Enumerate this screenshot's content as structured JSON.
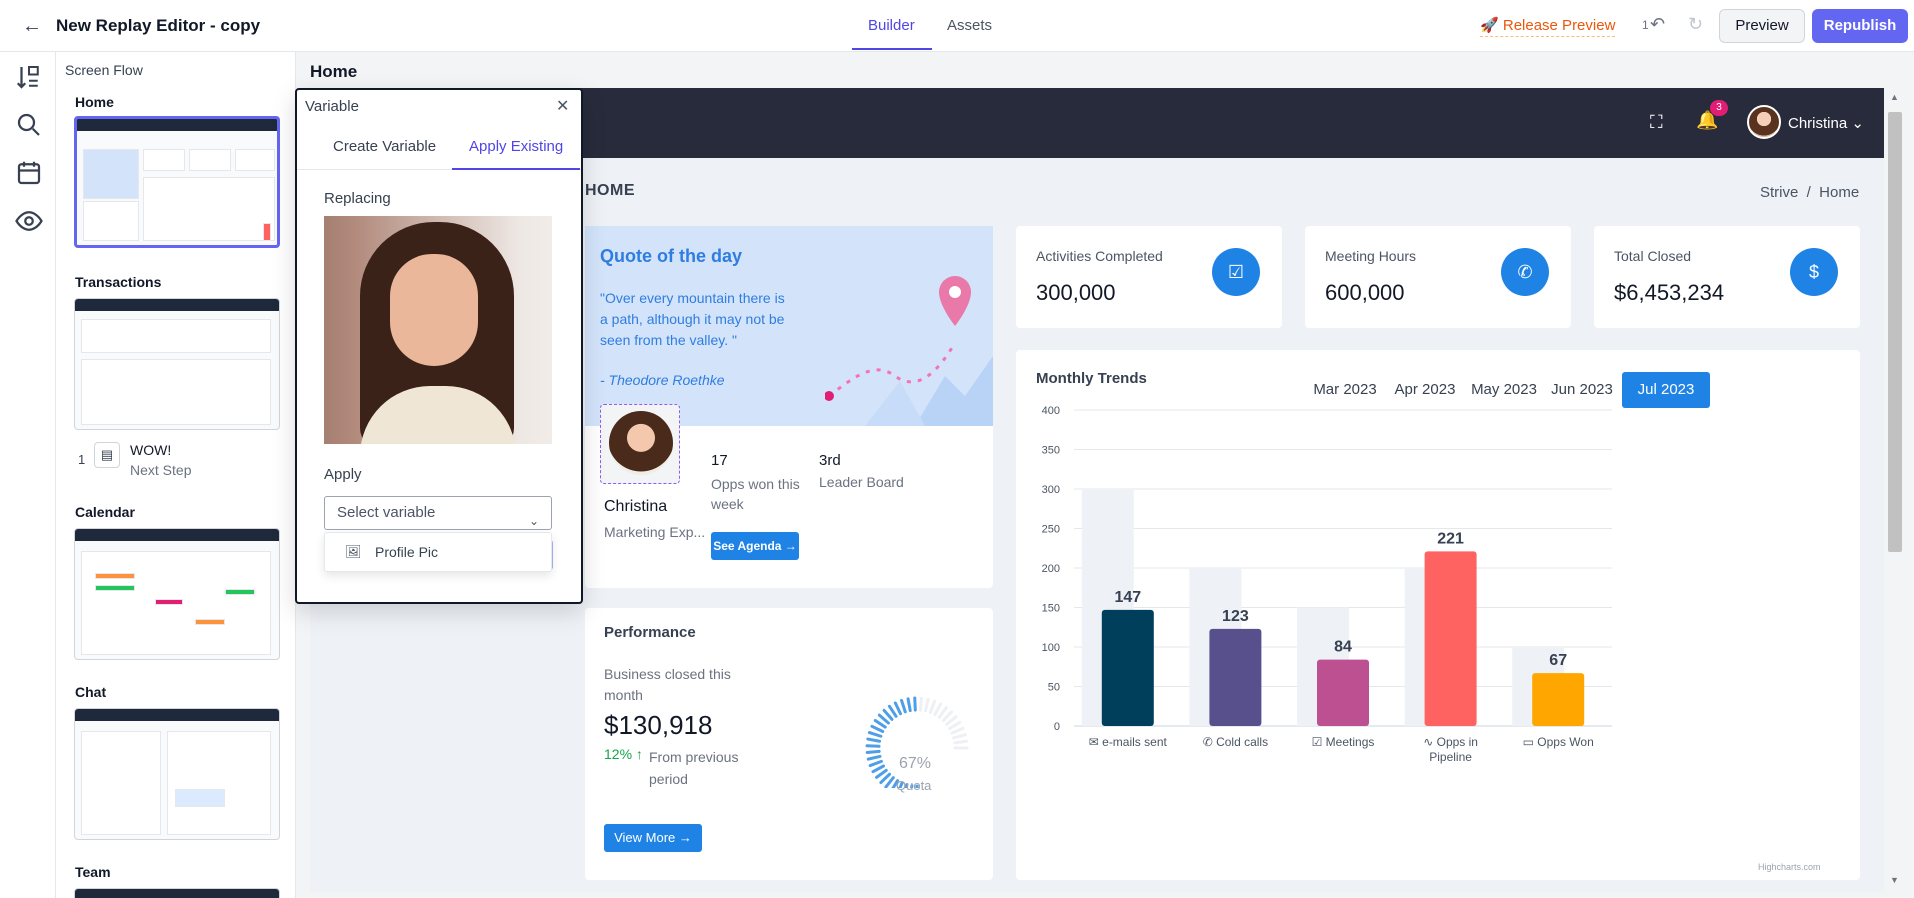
{
  "topbar": {
    "title": "New Replay Editor - copy",
    "tabs": [
      {
        "label": "Builder",
        "active": true
      },
      {
        "label": "Assets",
        "active": false
      }
    ],
    "release_preview": "Release Preview",
    "undo_count": "1",
    "preview": "Preview",
    "republish": "Republish"
  },
  "rail": {
    "icons": [
      "sort-icon",
      "search-icon",
      "calendar-icon",
      "eye-icon"
    ]
  },
  "flow": {
    "title": "Screen Flow",
    "screens": [
      "Home",
      "Transactions",
      "Calendar",
      "Chat",
      "Team"
    ],
    "step": {
      "number": "1",
      "title": "WOW!",
      "subtitle": "Next Step"
    }
  },
  "canvas": {
    "page_name": "Home",
    "header": {
      "notifications": "3",
      "user": "Christina"
    },
    "page_title": "HOME",
    "breadcrumb": "Strive  /  Home",
    "quote": {
      "title": "Quote of the day",
      "text": "\"Over every mountain there is a path, although it may not be seen from the valley. \"",
      "author": "- Theodore Roethke",
      "name": "Christina",
      "role": "Marketing Exp...",
      "opps_value": "17",
      "opps_label": "Opps won this week",
      "rank_value": "3rd",
      "rank_label": "Leader Board",
      "agenda_button": "See Agenda"
    },
    "stats": [
      {
        "label": "Activities Completed",
        "value": "300,000",
        "icon": "checkbox-icon"
      },
      {
        "label": "Meeting Hours",
        "value": "600,000",
        "icon": "phone-icon"
      },
      {
        "label": "Total Closed",
        "value": "$6,453,234",
        "icon": "dollar-icon"
      }
    ],
    "performance": {
      "title": "Performance",
      "label": "Business closed this month",
      "value": "$130,918",
      "change": "12%",
      "change_label": "From previous period",
      "gauge_value": "67%",
      "gauge_label": "Quota",
      "gauge_fraction": 0.67,
      "button": "View More"
    },
    "trends": {
      "title": "Monthly Trends",
      "months": [
        "Mar 2023",
        "Apr 2023",
        "May 2023",
        "Jun 2023",
        "Jul 2023"
      ],
      "active_month": "Jul 2023",
      "credit": "Highcharts.com"
    }
  },
  "chart_data": {
    "type": "bar",
    "title": "",
    "categories": [
      "e-mails sent",
      "Cold calls",
      "Meetings",
      "Opps in Pipeline",
      "Opps Won"
    ],
    "category_icons": [
      "envelope-icon",
      "phone-icon",
      "calendar-check-icon",
      "pulse-icon",
      "money-icon"
    ],
    "series": [
      {
        "values": [
          300,
          200,
          150,
          200,
          100
        ],
        "color": "#eef1f6"
      },
      {
        "values": [
          147,
          123,
          84,
          221,
          67
        ],
        "colors": [
          "#003f5c",
          "#58508d",
          "#bc5090",
          "#ff6361",
          "#ffa600"
        ]
      }
    ],
    "data_labels": [
      "147",
      "123",
      "84",
      "221",
      "67"
    ],
    "yticks": [
      0,
      50,
      100,
      150,
      200,
      250,
      300,
      350,
      400
    ],
    "ylim": [
      0,
      400
    ],
    "grid": true
  },
  "variable_popup": {
    "title": "Variable",
    "tabs": [
      {
        "label": "Create Variable",
        "active": false
      },
      {
        "label": "Apply Existing",
        "active": true
      }
    ],
    "replacing_label": "Replacing",
    "apply_label": "Apply",
    "select_placeholder": "Select variable",
    "options": [
      {
        "label": "Profile Pic",
        "icon": "image-icon"
      }
    ]
  }
}
